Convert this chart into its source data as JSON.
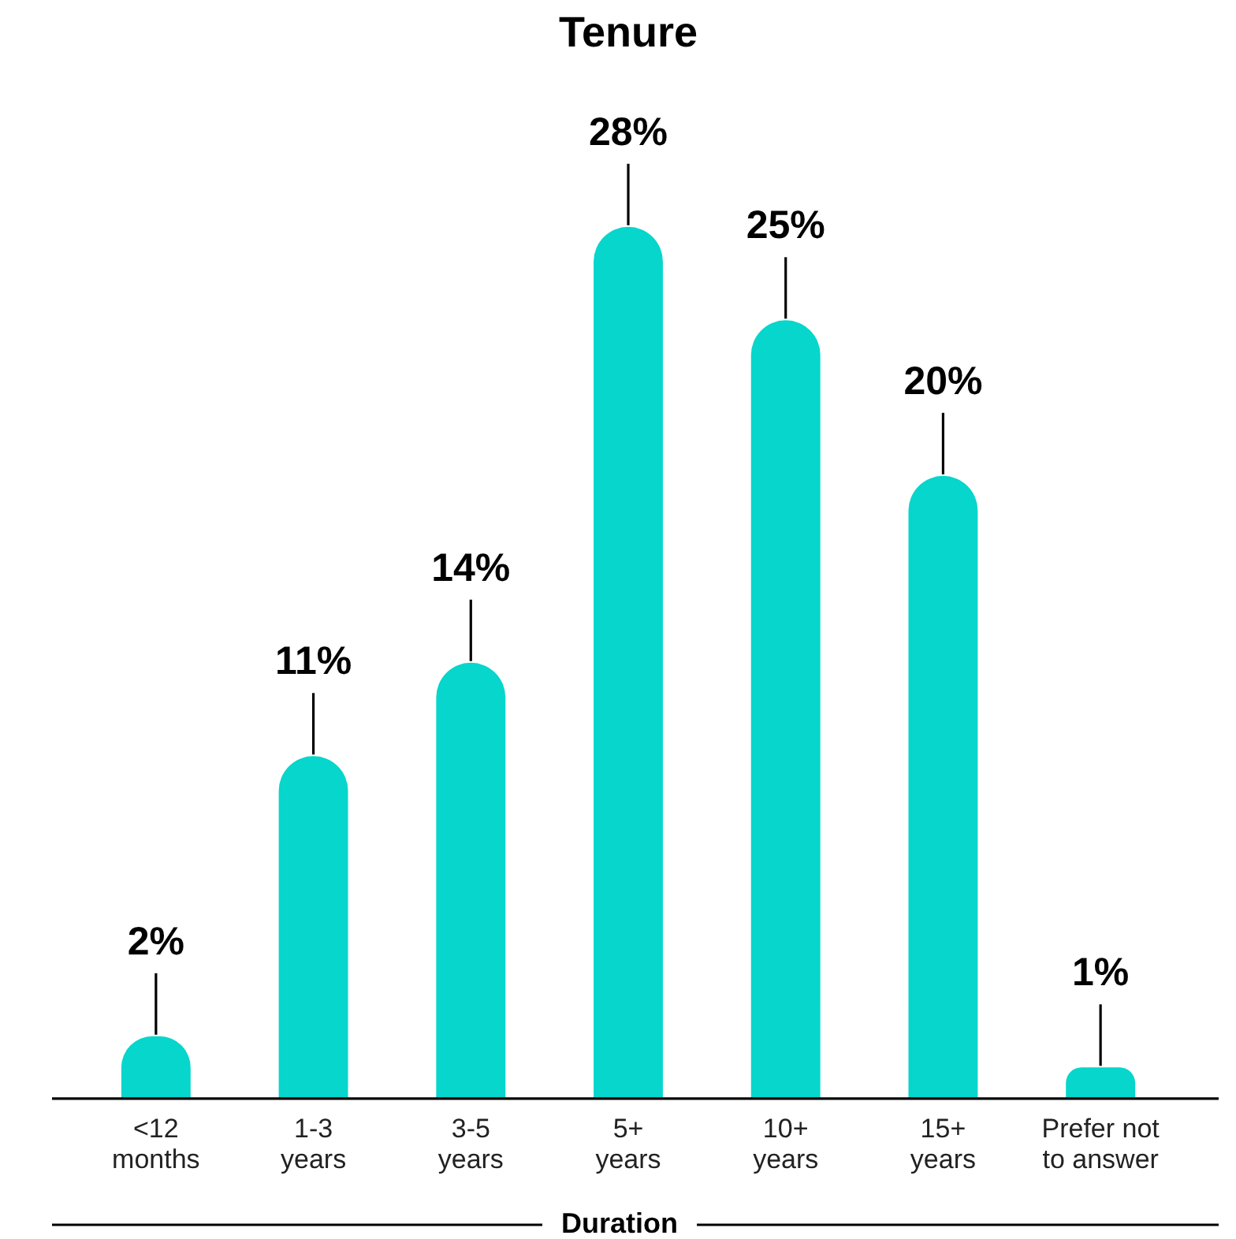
{
  "chart_data": {
    "type": "bar",
    "title": "Tenure",
    "xlabel": "Duration",
    "categories": [
      "<12 months",
      "1-3 years",
      "3-5 years",
      "5+ years",
      "10+ years",
      "15+ years",
      "Prefer not to answer"
    ],
    "values": [
      2,
      11,
      14,
      28,
      25,
      20,
      1
    ],
    "value_labels": [
      "2%",
      "11%",
      "14%",
      "28%",
      "25%",
      "20%",
      "1%"
    ],
    "color": "#06d6cc",
    "tick_labels": "x"
  }
}
